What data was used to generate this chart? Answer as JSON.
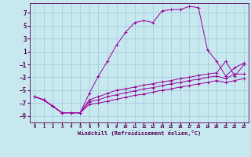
{
  "xlabel": "Windchill (Refroidissement éolien,°C)",
  "background_color": "#c8e8f0",
  "grid_color": "#a0c8d8",
  "line_color": "#990099",
  "x_hours": [
    0,
    1,
    2,
    3,
    4,
    5,
    6,
    7,
    8,
    9,
    10,
    11,
    12,
    13,
    14,
    15,
    16,
    17,
    18,
    19,
    20,
    21,
    22,
    23
  ],
  "l1y": [
    -6.0,
    -6.5,
    -7.5,
    -8.5,
    -8.5,
    -8.5,
    -5.5,
    -2.8,
    -0.5,
    2.0,
    4.0,
    5.5,
    5.8,
    5.5,
    7.3,
    7.5,
    7.5,
    8.0,
    7.8,
    1.2,
    -0.5,
    -2.8,
    -1.5,
    -0.8
  ],
  "l2y": [
    -6.0,
    -6.5,
    -7.5,
    -8.5,
    -8.5,
    -8.5,
    -6.5,
    -6.0,
    -5.5,
    -5.0,
    -4.8,
    -4.5,
    -4.2,
    -4.0,
    -3.7,
    -3.5,
    -3.2,
    -3.0,
    -2.7,
    -2.5,
    -2.3,
    -0.5,
    -2.8,
    -1.0
  ],
  "l3y": [
    -6.0,
    -6.5,
    -7.5,
    -8.5,
    -8.5,
    -8.5,
    -6.8,
    -6.5,
    -6.0,
    -5.7,
    -5.4,
    -5.1,
    -4.8,
    -4.6,
    -4.3,
    -4.0,
    -3.8,
    -3.5,
    -3.3,
    -3.0,
    -2.8,
    -3.2,
    -2.5,
    -2.5
  ],
  "l4y": [
    -6.0,
    -6.5,
    -7.5,
    -8.5,
    -8.5,
    -8.5,
    -7.2,
    -7.0,
    -6.7,
    -6.4,
    -6.1,
    -5.8,
    -5.6,
    -5.3,
    -5.0,
    -4.8,
    -4.5,
    -4.3,
    -4.0,
    -3.8,
    -3.5,
    -3.8,
    -3.5,
    -3.2
  ],
  "ylim": [
    -10.0,
    8.5
  ],
  "xlim": [
    -0.5,
    23.5
  ],
  "yticks": [
    -9,
    -7,
    -5,
    -3,
    -1,
    1,
    3,
    5,
    7
  ],
  "xticks": [
    0,
    1,
    2,
    3,
    4,
    5,
    6,
    7,
    8,
    9,
    10,
    11,
    12,
    13,
    14,
    15,
    16,
    17,
    18,
    19,
    20,
    21,
    22,
    23
  ]
}
